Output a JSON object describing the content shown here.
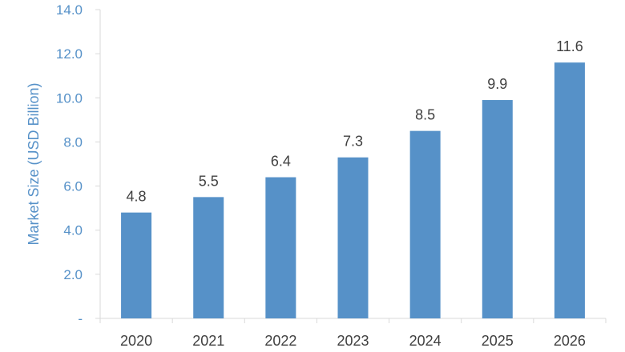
{
  "chart_data": {
    "type": "bar",
    "categories": [
      "2020",
      "2021",
      "2022",
      "2023",
      "2024",
      "2025",
      "2026"
    ],
    "values": [
      4.8,
      5.5,
      6.4,
      7.3,
      8.5,
      9.9,
      11.6
    ],
    "data_labels": [
      "4.8",
      "5.5",
      "6.4",
      "7.3",
      "8.5",
      "9.9",
      "11.6"
    ],
    "title": "",
    "xlabel": "",
    "ylabel": "Market Size (USD Billion)",
    "ylim": [
      0,
      14
    ],
    "yticks": [
      {
        "value": 0,
        "label": "-"
      },
      {
        "value": 2,
        "label": "2.0"
      },
      {
        "value": 4,
        "label": "4.0"
      },
      {
        "value": 6,
        "label": "6.0"
      },
      {
        "value": 8,
        "label": "8.0"
      },
      {
        "value": 10,
        "label": "10.0"
      },
      {
        "value": 12,
        "label": "12.0"
      },
      {
        "value": 14,
        "label": "14.0"
      }
    ],
    "grid": false,
    "legend": "none",
    "colors": {
      "bar": "#5691c8",
      "text": "#404040",
      "axis_text": "#5691c8",
      "axis_line": "#d9d9d9"
    }
  }
}
